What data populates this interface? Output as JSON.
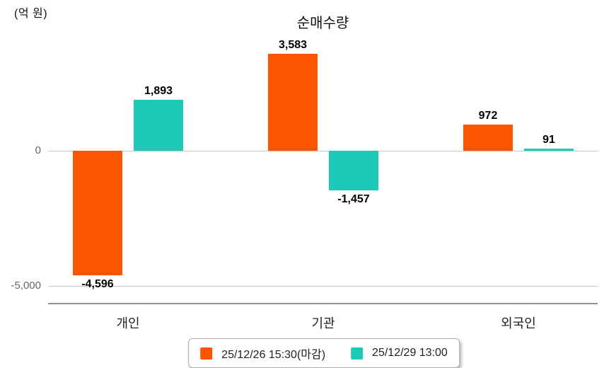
{
  "chart": {
    "title": "순매수량",
    "unit_label": "(억 원)",
    "y_ticks": [
      {
        "value": 0,
        "label": "0"
      },
      {
        "value": -5000,
        "label": "-5,000"
      }
    ]
  },
  "chart_data": {
    "type": "bar",
    "title": "순매수량",
    "ylabel": "(억 원)",
    "categories": [
      "개인",
      "기관",
      "외국인"
    ],
    "series": [
      {
        "name": "25/12/26 15:30(마감)",
        "color": "#fb5502",
        "values": [
          -4596,
          3583,
          972
        ],
        "value_labels": [
          "-4,596",
          "3,583",
          "972"
        ]
      },
      {
        "name": "25/12/29 13:00",
        "color": "#1fc9b9",
        "values": [
          1893,
          -1457,
          91
        ],
        "value_labels": [
          "1,893",
          "-1,457",
          "91"
        ]
      }
    ],
    "ylim": [
      -5700,
      4300
    ],
    "grid": "horizontal gridlines at 0 and -5000 only",
    "legend_position": "bottom-center",
    "value_labels_shown": true
  }
}
